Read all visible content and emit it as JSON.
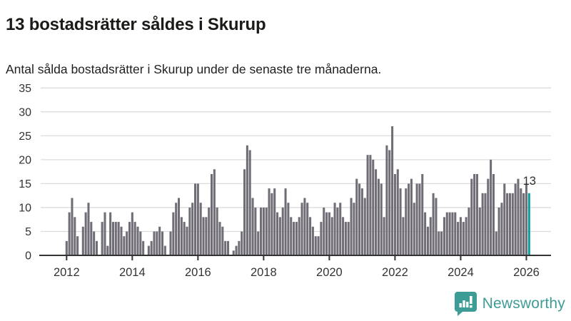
{
  "header": {
    "title": "13 bostadsrätter såldes i Skurup",
    "subtitle": "Antal sålda bostadsrätter i Skurup under de senaste tre månaderna."
  },
  "chart_data": {
    "type": "bar",
    "title": "13 bostadsrätter såldes i Skurup",
    "x_unit": "month",
    "x_start": "2012-01",
    "x_end": "2026-02",
    "x_tick_labels": [
      "2012",
      "2014",
      "2016",
      "2018",
      "2020",
      "2022",
      "2024",
      "2026"
    ],
    "y_ticks": [
      0,
      5,
      10,
      15,
      20,
      25,
      30,
      35
    ],
    "ylim": [
      0,
      35
    ],
    "grid": true,
    "bar_color": "#716d76",
    "highlight_color": "#089d9d",
    "annotation": {
      "text": "13",
      "target": "last-bar"
    },
    "values_by_year": {
      "2012": [
        3,
        9,
        12,
        8,
        4,
        0,
        6,
        9,
        11,
        7,
        5,
        3
      ],
      "2013": [
        0,
        7,
        9,
        2,
        9,
        7,
        7,
        7,
        6,
        4,
        5,
        7
      ],
      "2014": [
        9,
        7,
        6,
        5,
        3,
        0,
        2,
        3,
        5,
        5,
        6,
        5
      ],
      "2015": [
        2,
        0,
        5,
        9,
        11,
        12,
        8,
        7,
        6,
        10,
        11,
        15
      ],
      "2016": [
        15,
        11,
        8,
        8,
        10,
        17,
        18,
        10,
        7,
        6,
        3,
        3
      ],
      "2017": [
        0,
        1,
        2,
        3,
        5,
        18,
        23,
        22,
        12,
        10,
        5,
        10
      ],
      "2018": [
        10,
        10,
        14,
        13,
        14,
        9,
        8,
        10,
        14,
        11,
        8,
        7
      ],
      "2019": [
        7,
        8,
        11,
        12,
        11,
        8,
        6,
        4,
        4,
        7,
        10,
        9
      ],
      "2020": [
        9,
        8,
        11,
        10,
        11,
        8,
        7,
        7,
        12,
        11,
        16,
        15
      ],
      "2021": [
        14,
        12,
        21,
        21,
        20,
        18,
        16,
        15,
        8,
        23,
        22,
        27
      ],
      "2022": [
        17,
        18,
        14,
        8,
        14,
        15,
        16,
        11,
        15,
        15,
        17,
        9
      ],
      "2023": [
        6,
        8,
        13,
        12,
        5,
        5,
        8,
        9,
        9,
        9,
        9,
        7
      ],
      "2024": [
        8,
        7,
        8,
        10,
        16,
        17,
        17,
        10,
        13,
        13,
        16,
        20
      ],
      "2025": [
        17,
        5,
        10,
        11,
        15,
        13,
        13,
        13,
        15,
        16,
        14,
        13
      ],
      "2026": [
        15,
        13
      ]
    },
    "last_value": 13
  },
  "colors": {
    "axis": "#333333",
    "grid": "#dcdcdc",
    "tick_label": "#333333",
    "annotation": "#2d2d2d",
    "brand": "#3e9c96"
  },
  "footer": {
    "brand": "Newsworthy",
    "logo_icon": "bar-chart-speech-bubble-icon"
  }
}
